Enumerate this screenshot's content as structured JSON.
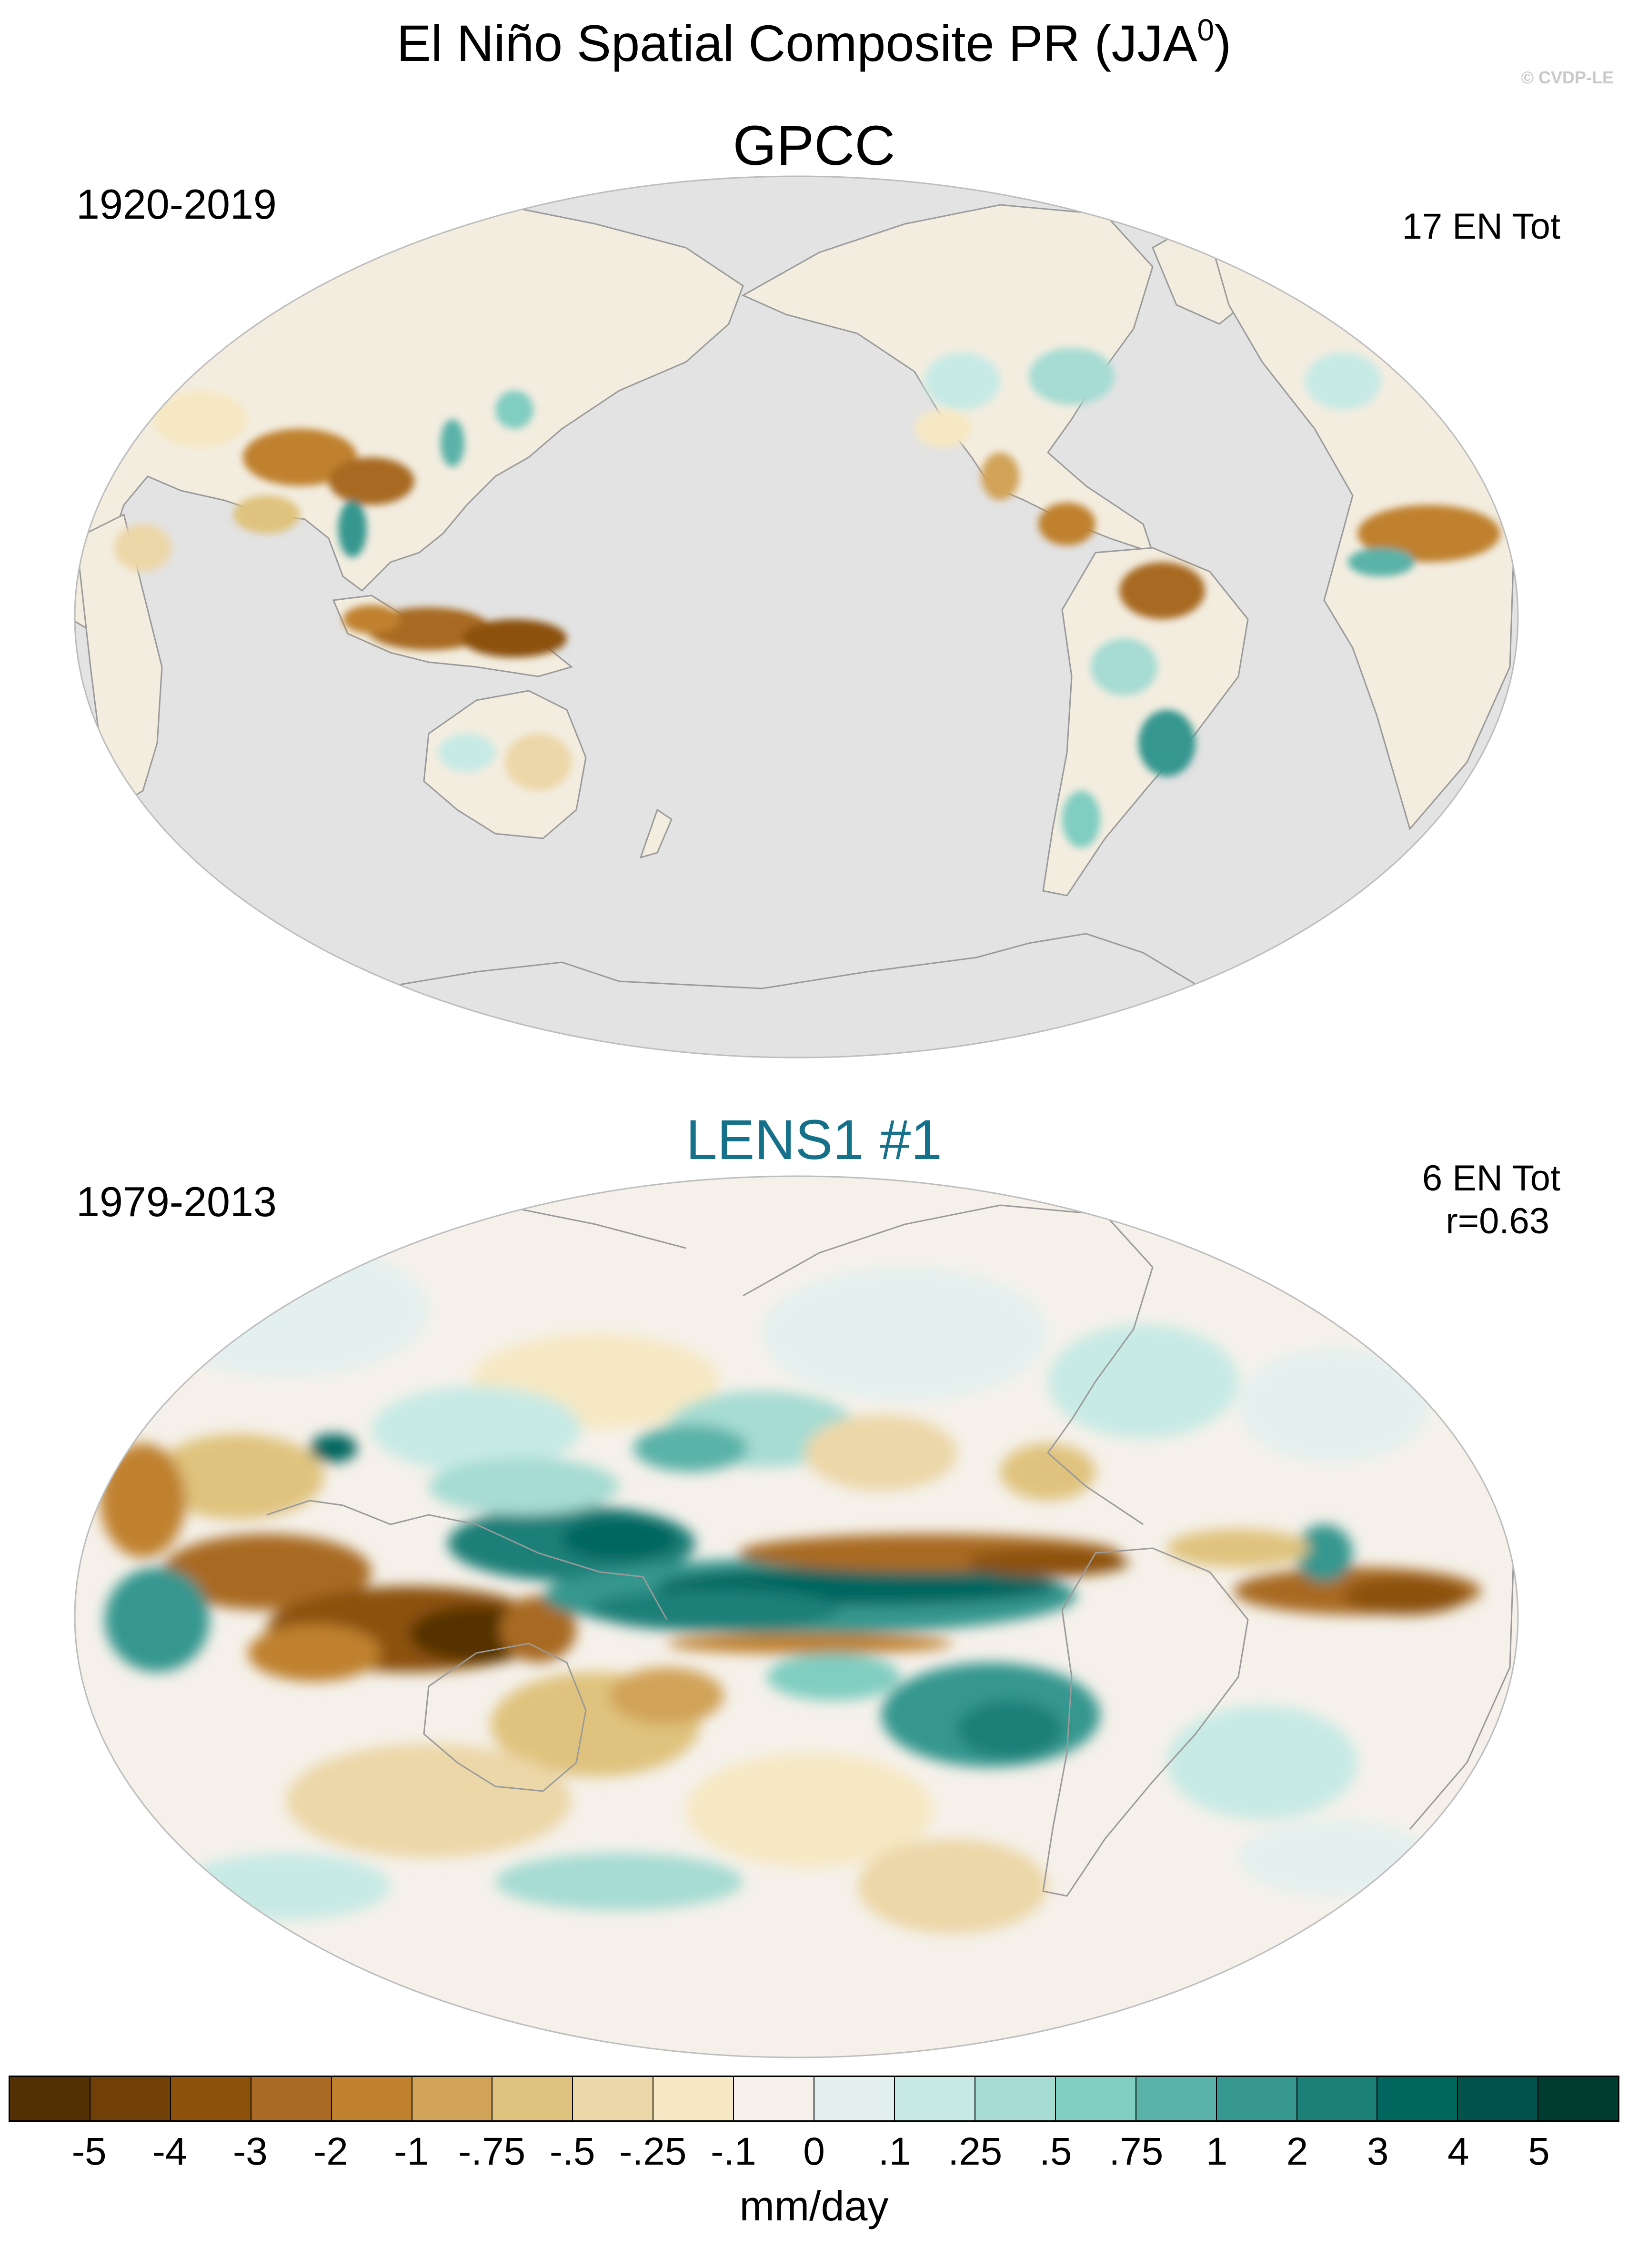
{
  "figure": {
    "title_main": "El Niño Spatial Composite PR (JJA",
    "title_sup": "0",
    "title_close": ")",
    "copyright": "© CVDP-LE"
  },
  "panels": [
    {
      "title": "GPCC",
      "period": "1920-2019",
      "count": "17 EN Tot",
      "stat": ""
    },
    {
      "title": "LENS1 #1",
      "period": "1979-2013",
      "count": "6 EN Tot",
      "stat": "r=0.63"
    }
  ],
  "colorbar": {
    "units": "mm/day",
    "tick_labels": [
      "-5",
      "-4",
      "-3",
      "-2",
      "-1",
      "-.75",
      "-.5",
      "-.25",
      "-.1",
      "0",
      ".1",
      ".25",
      ".5",
      ".75",
      "1",
      "2",
      "3",
      "4",
      "5"
    ],
    "colors": [
      "#543005",
      "#714009",
      "#8c510a",
      "#a86a24",
      "#bf812d",
      "#d1a358",
      "#dfc27d",
      "#ecd7a8",
      "#f6e8c3",
      "#f5f1ea",
      "#e4f0ef",
      "#c7eae5",
      "#a6dcd3",
      "#80cdc1",
      "#5ab2a8",
      "#35978f",
      "#1c7f78",
      "#01665e",
      "#00524a",
      "#003c30"
    ]
  },
  "map_style": {
    "missing_color": "#e3e3e3",
    "coast_color": "#8f8f8f",
    "projection": "Robinson",
    "center_longitude": "180"
  }
}
